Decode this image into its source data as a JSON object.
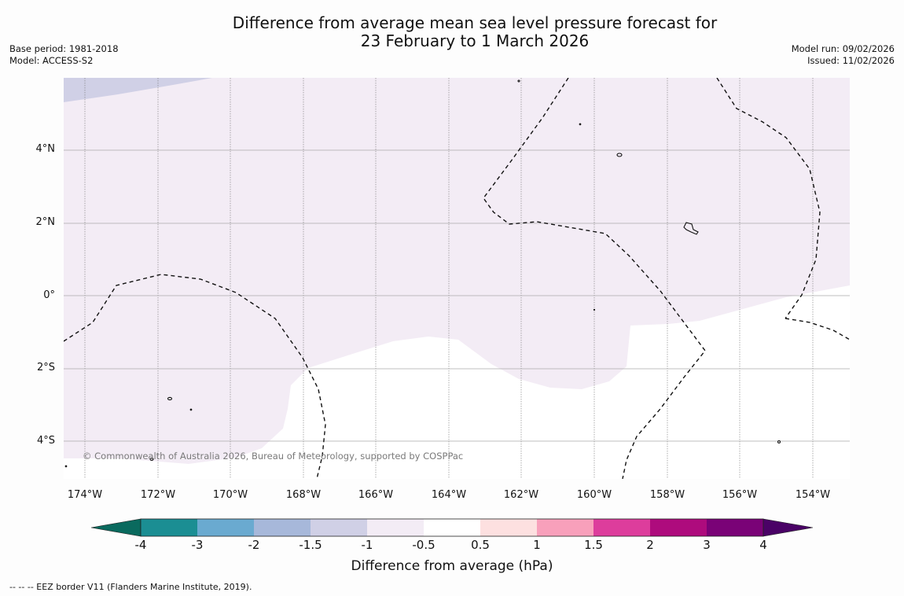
{
  "title_line1": "Difference from average mean sea level pressure forecast for",
  "title_line2": "23 February to 1 March 2026",
  "base_period": "Base period: 1981-2018",
  "model": "Model: ACCESS-S2",
  "model_run": "Model run: 09/02/2026",
  "issued": "Issued: 11/02/2026",
  "copyright": "© Commonwealth of Australia 2026, Bureau of Meteorology, supported by COSPPac",
  "footnote": "-- -- -- EEZ border V11 (Flanders Marine Institute, 2019).",
  "lat_ticks": [
    "4°N",
    "2°N",
    "0°",
    "2°S",
    "4°S"
  ],
  "lon_ticks": [
    "174°W",
    "172°W",
    "170°W",
    "168°W",
    "166°W",
    "164°W",
    "162°W",
    "160°W",
    "158°W",
    "156°W",
    "154°W"
  ],
  "colorbar": {
    "title": "Difference from average (hPa)",
    "tick_labels": [
      "-4",
      "-3",
      "-2",
      "-1.5",
      "-1",
      "-0.5",
      "0.5",
      "1",
      "1.5",
      "2",
      "3",
      "4"
    ],
    "colors": [
      "#1b8e93",
      "#6aaad0",
      "#a7b8da",
      "#d0d0e6",
      "#f3ecf5",
      "#ffffff",
      "#fde0e0",
      "#f8a0bb",
      "#dd3d9c",
      "#ae0b7d",
      "#7a0277"
    ],
    "under_color": "#0a6a5e",
    "over_color": "#4a0266"
  },
  "map_colors": {
    "fill_neg_1_to_neg_05": "#f3ecf5",
    "fill_neg_15_to_neg_1": "#d0d0e6",
    "fill_neutral": "#ffffff"
  }
}
